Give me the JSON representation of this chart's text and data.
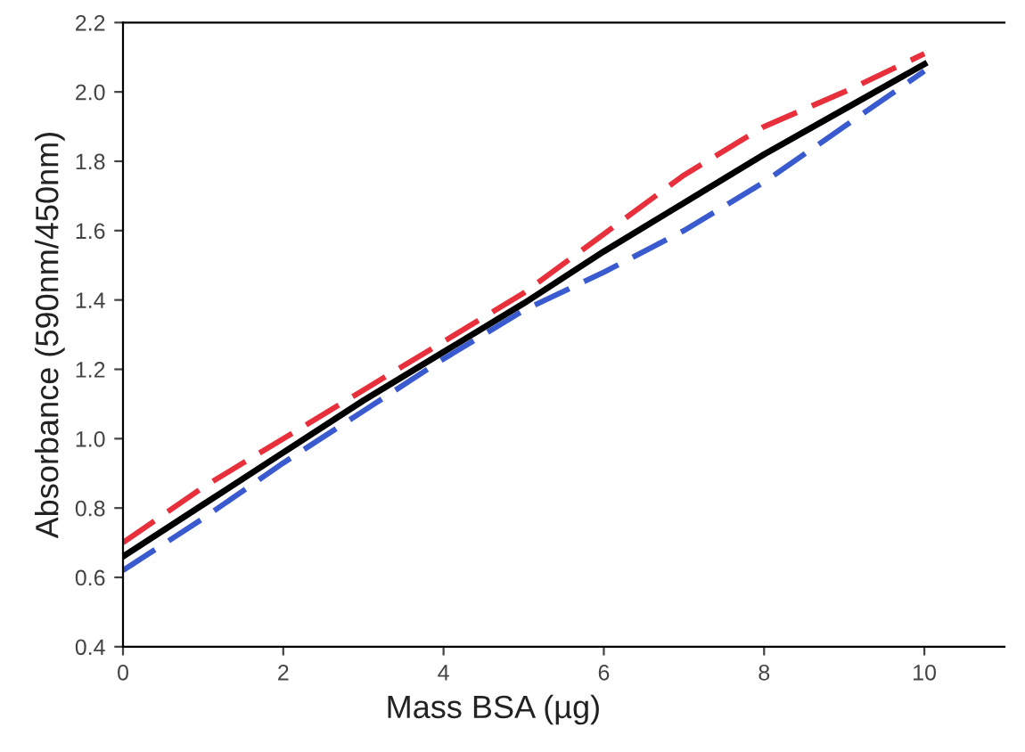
{
  "chart_data": {
    "type": "line",
    "xlabel": "Mass BSA (µg)",
    "ylabel": "Absorbance (590nm/450nm)",
    "x": [
      0,
      1,
      2,
      3,
      4,
      5,
      6,
      7,
      8,
      9,
      10
    ],
    "xlim": [
      0,
      11
    ],
    "xticks": [
      0,
      2,
      4,
      6,
      8,
      10
    ],
    "ylim": [
      0.4,
      2.2
    ],
    "yticks": [
      {
        "value": 0.4,
        "label": "0.4"
      },
      {
        "value": 0.6,
        "label": "0.6"
      },
      {
        "value": 0.8,
        "label": "0.8"
      },
      {
        "value": 1.0,
        "label": "1.0"
      },
      {
        "value": 1.2,
        "label": "1.2"
      },
      {
        "value": 1.4,
        "label": "1.4"
      },
      {
        "value": 1.6,
        "label": "1.6"
      },
      {
        "value": 1.8,
        "label": "1.8"
      },
      {
        "value": 2.0,
        "label": "2.0"
      },
      {
        "value": 2.2,
        "label": "2.2"
      }
    ],
    "grid": false,
    "marker": "none",
    "series": [
      {
        "color": "#e8303c",
        "line_style": "dashed",
        "values": [
          0.7,
          0.86,
          1.0,
          1.14,
          1.28,
          1.42,
          1.59,
          1.76,
          1.9,
          2.0,
          2.11
        ]
      },
      {
        "color": "#3a5bd0",
        "line_style": "dashed",
        "values": [
          0.62,
          0.77,
          0.93,
          1.08,
          1.23,
          1.37,
          1.48,
          1.6,
          1.74,
          1.9,
          2.06
        ]
      },
      {
        "color": "#000000",
        "line_style": "solid",
        "values": [
          0.66,
          0.81,
          0.96,
          1.11,
          1.25,
          1.39,
          1.54,
          1.68,
          1.82,
          1.95,
          2.08
        ]
      }
    ]
  }
}
